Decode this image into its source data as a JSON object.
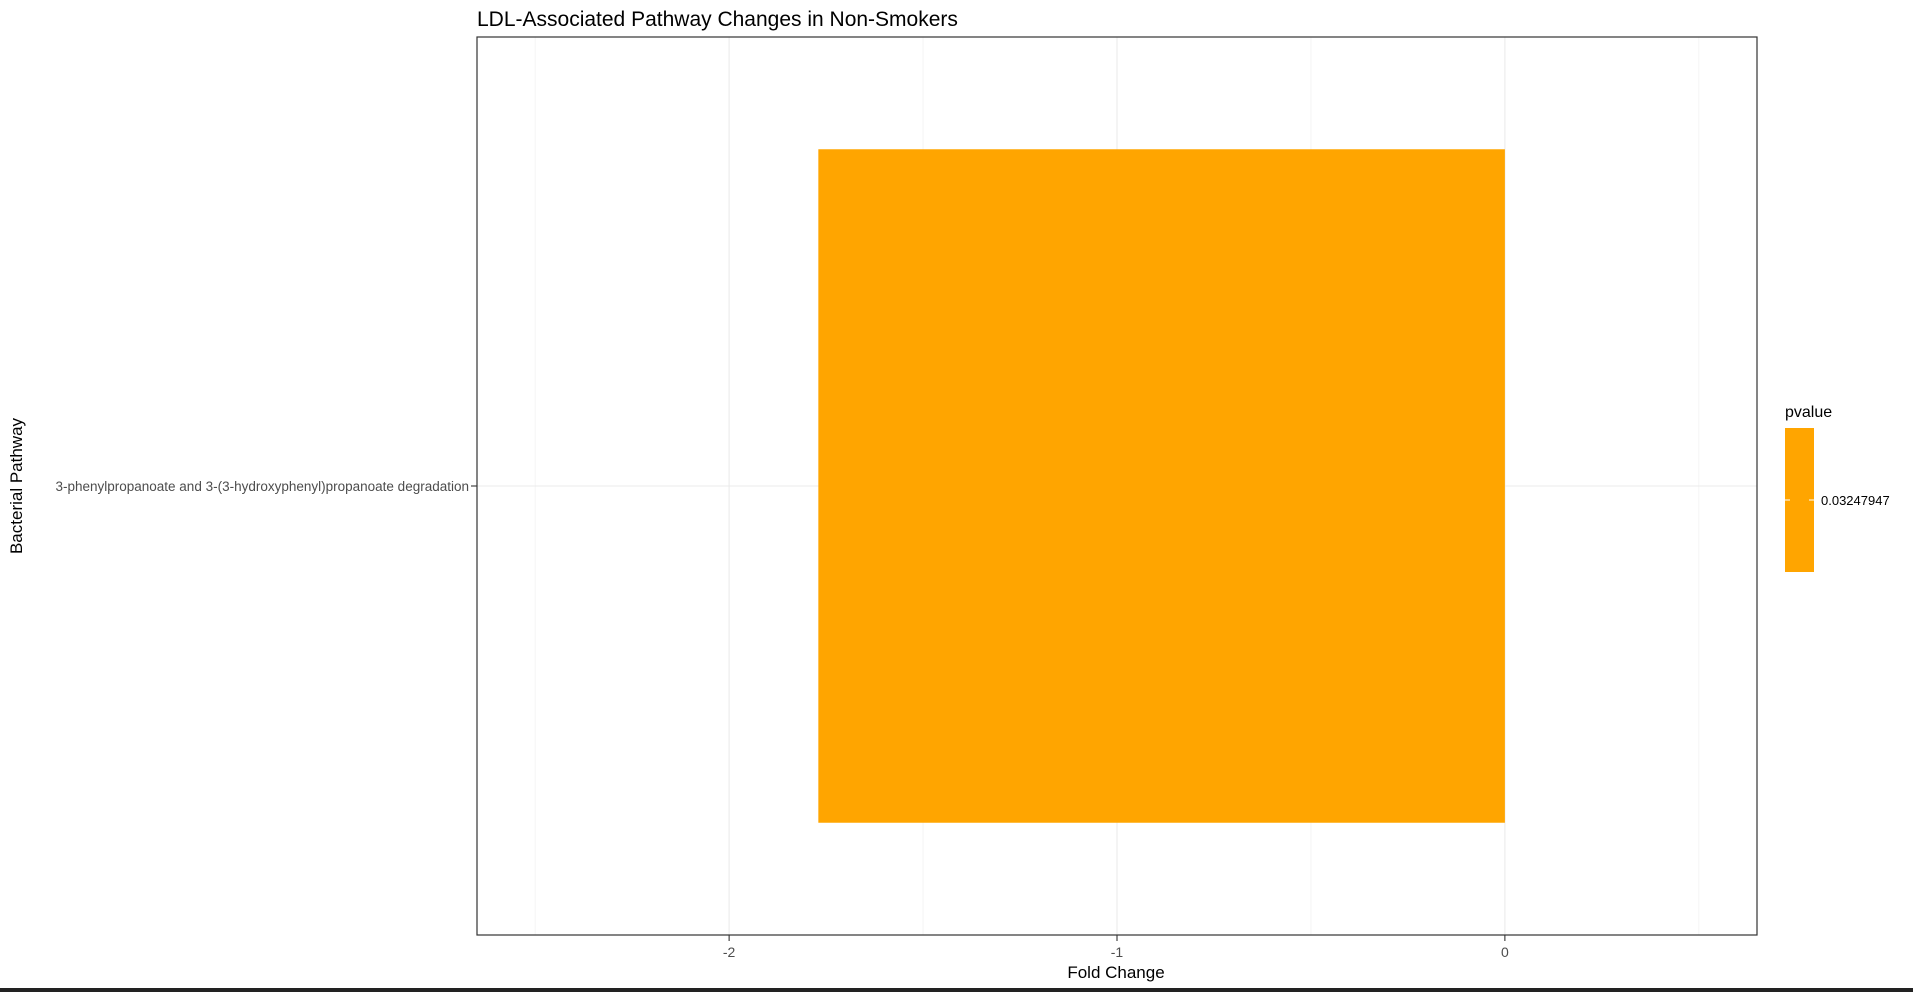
{
  "chart_data": {
    "type": "bar",
    "orientation": "horizontal",
    "title": "LDL-Associated Pathway Changes in Non-Smokers",
    "xlabel": "Fold Change",
    "ylabel": "Bacterial Pathway",
    "categories": [
      "3-phenylpropanoate and 3-(3-hydroxyphenyl)propanoate degradation"
    ],
    "values": [
      -1.77
    ],
    "xlim": [
      -2.65,
      0.65
    ],
    "x_ticks": [
      -2,
      -1,
      0
    ],
    "x_tick_labels": [
      "-2",
      "-1",
      "0"
    ],
    "grid": true,
    "bar_color": "#FFA500",
    "legend": {
      "title": "pvalue",
      "placement": "right",
      "entries": [
        "0.03247947"
      ],
      "color": "#FFA500"
    }
  }
}
